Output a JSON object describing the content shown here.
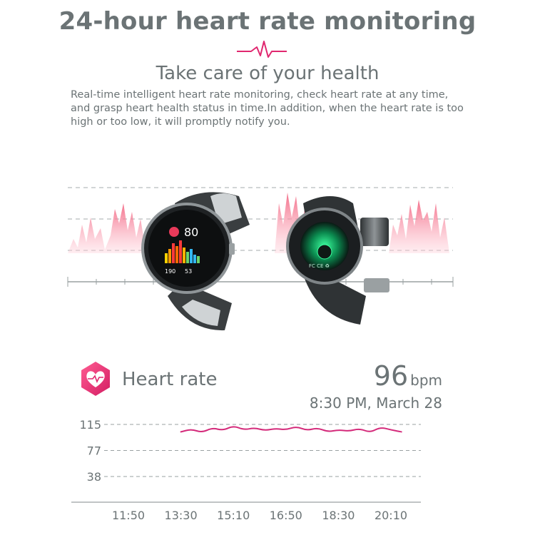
{
  "title": "24-hour heart rate monitoring",
  "subtitle": "Take care of your health",
  "description": "Real-time intelligent heart rate monitoring, check heart rate at any time, and grasp heart health status in time.In addition, when the heart rate is too high or too low, it will promptly notify you.",
  "icons": {
    "title_pulse": "pulse-icon",
    "heart_rate": "heart-rate-icon"
  },
  "hero": {
    "watch_screen": {
      "heart_rate_value": "80",
      "stat_left": "190",
      "stat_right": "53"
    }
  },
  "heart_rate_card": {
    "label": "Heart rate",
    "value": "96",
    "unit": "bpm",
    "timestamp": "8:30 PM, March 28"
  },
  "chart_data": {
    "type": "line",
    "y_ticks": [
      "115",
      "77",
      "38"
    ],
    "x_ticks": [
      "11:50",
      "13:30",
      "15:10",
      "16:50",
      "18:30",
      "20:10"
    ],
    "series": [
      {
        "values": [
          {
            "x": "13:30",
            "y": 104
          },
          {
            "x": "13:50",
            "y": 108
          },
          {
            "x": "14:10",
            "y": 103
          },
          {
            "x": "14:30",
            "y": 110
          },
          {
            "x": "14:50",
            "y": 106
          },
          {
            "x": "15:10",
            "y": 113
          },
          {
            "x": "15:30",
            "y": 107
          },
          {
            "x": "15:50",
            "y": 110
          },
          {
            "x": "16:10",
            "y": 106
          },
          {
            "x": "16:30",
            "y": 109
          },
          {
            "x": "16:50",
            "y": 107
          },
          {
            "x": "17:10",
            "y": 112
          },
          {
            "x": "17:30",
            "y": 106
          },
          {
            "x": "17:50",
            "y": 110
          },
          {
            "x": "18:10",
            "y": 104
          },
          {
            "x": "18:30",
            "y": 107
          },
          {
            "x": "18:50",
            "y": 105
          },
          {
            "x": "19:10",
            "y": 109
          },
          {
            "x": "19:30",
            "y": 103
          },
          {
            "x": "19:50",
            "y": 111
          },
          {
            "x": "20:10",
            "y": 107
          },
          {
            "x": "20:30",
            "y": 104
          }
        ]
      }
    ],
    "colors": {
      "line": "#d42a7a",
      "grid": "#9aa0a2",
      "axis": "#9aa0a2",
      "text": "#6b7375"
    },
    "grid": true
  },
  "colors": {
    "text": "#6b7375",
    "accent": "#e0276f",
    "accent_light": "#f6a0b2"
  }
}
